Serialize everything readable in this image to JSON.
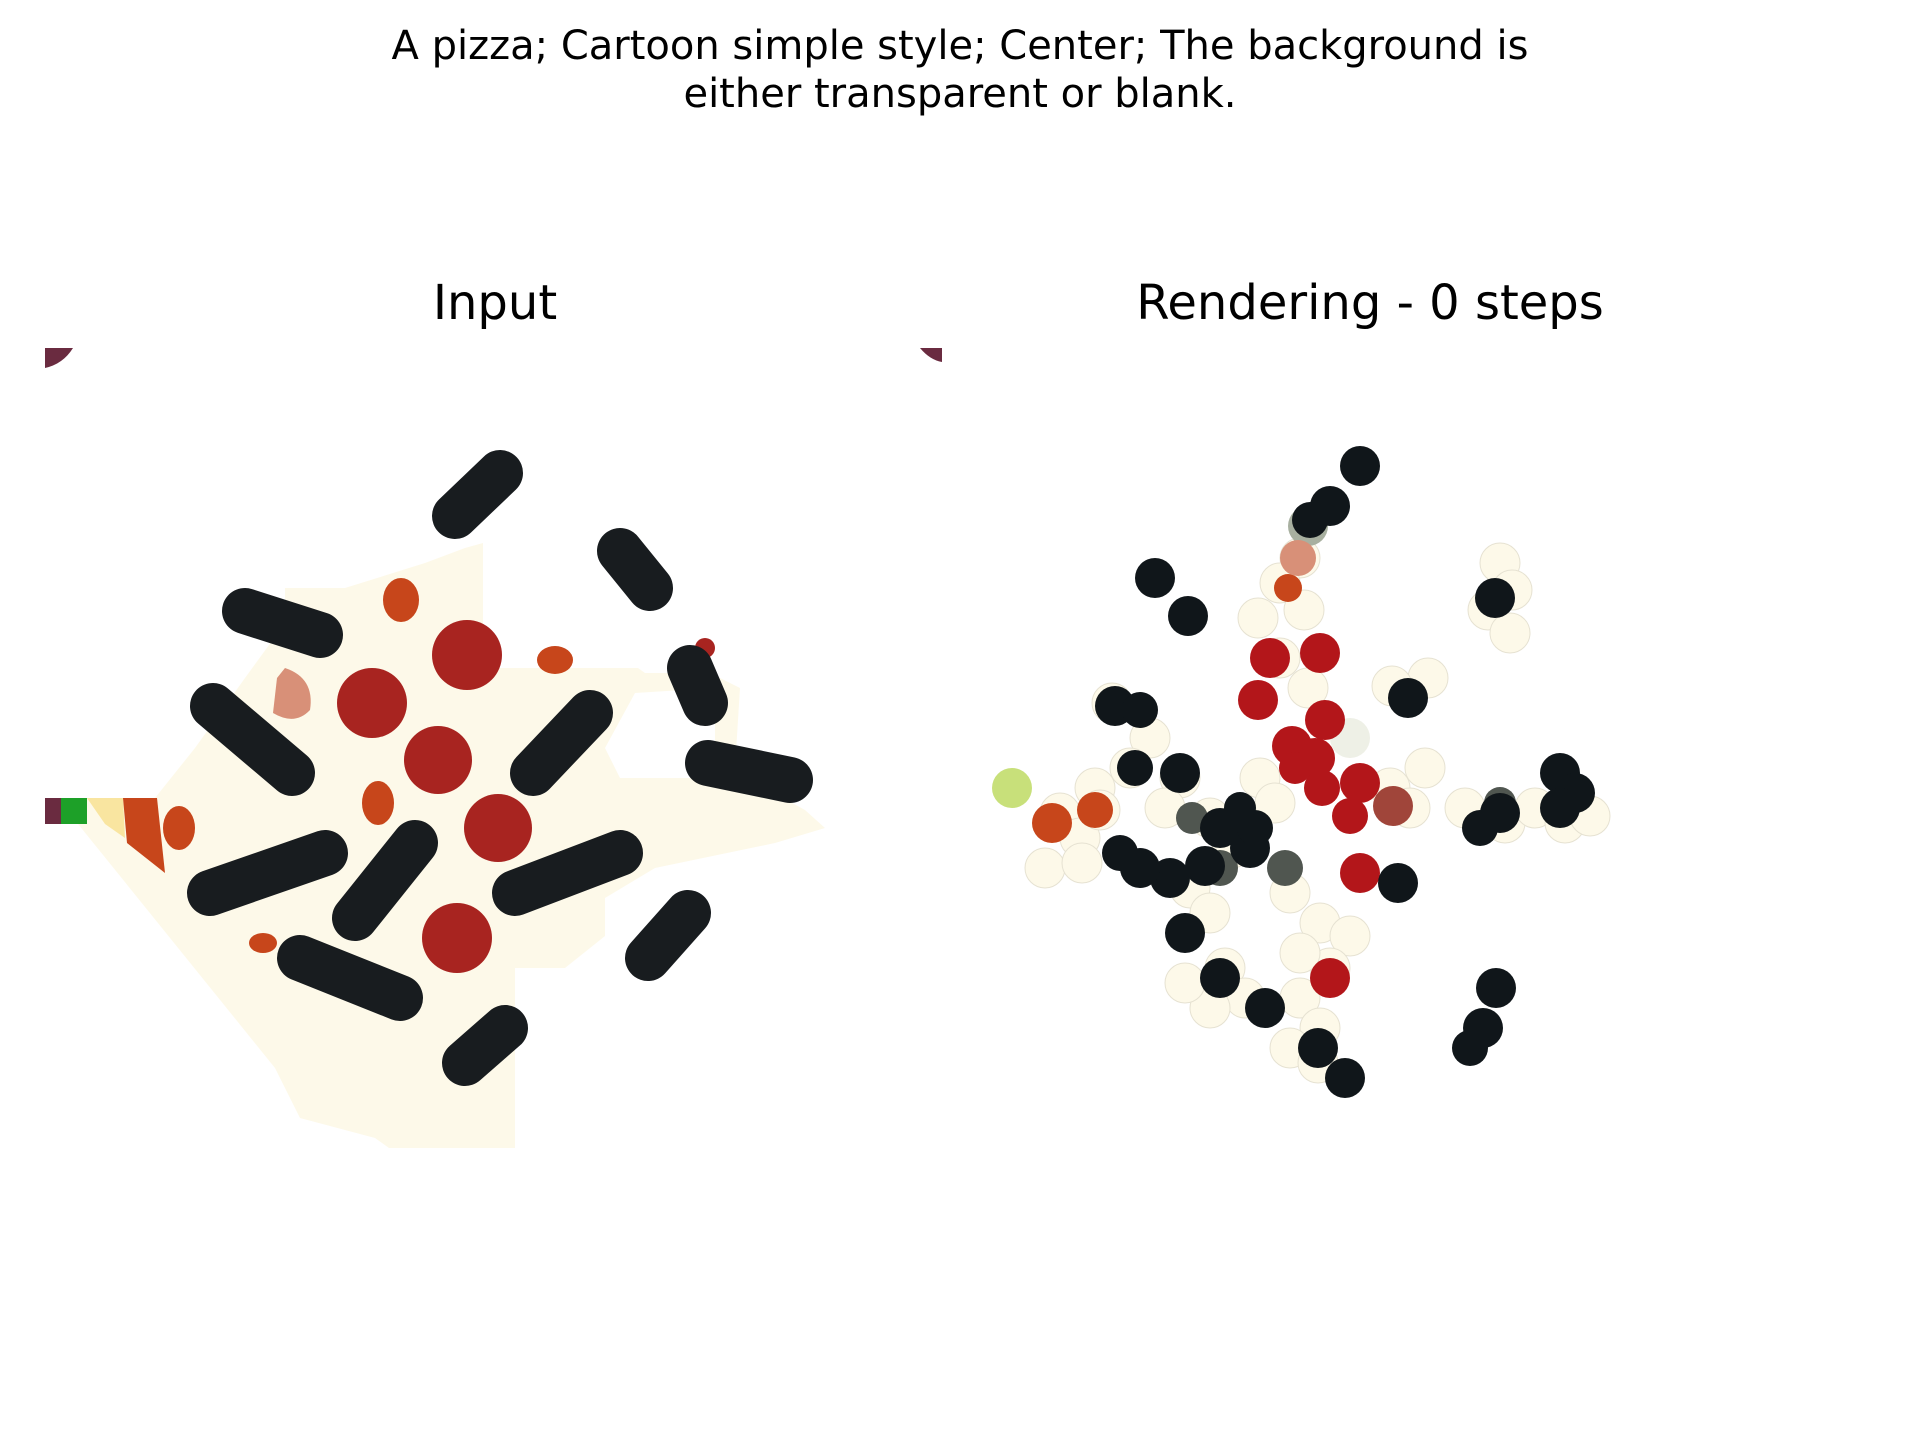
{
  "figure": {
    "suptitle": "A pizza; Cartoon simple style; Center; The background is\neither transparent or blank."
  },
  "panels": {
    "input": {
      "title": "Input"
    },
    "rendering": {
      "title": "Rendering - 0 steps"
    }
  },
  "colors": {
    "background": "#ffffff",
    "cheese": "#fdf9e9",
    "olive": "#181c1f",
    "pepperoni": "#a82420",
    "orange_topping": "#c7461b",
    "crust_stripe_yellow": "#f9e5a0",
    "green": "#1da028",
    "maroon": "#6a2b40",
    "light_green": "#c8e07a",
    "brown_red": "#a0453a",
    "salmon": "#d89078",
    "gray": "#a8b0a0",
    "pale_gray": "#eef0e6"
  }
}
